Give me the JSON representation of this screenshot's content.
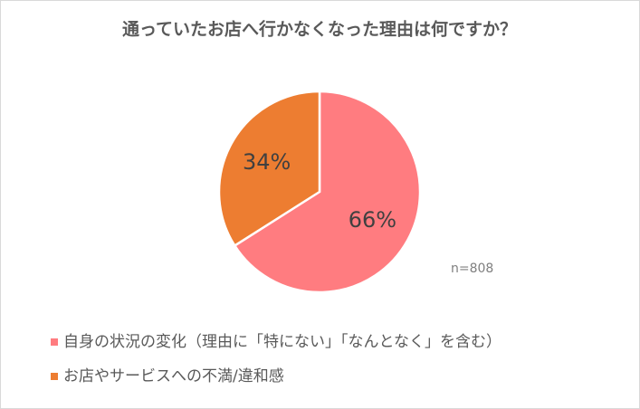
{
  "chart_data": {
    "type": "pie",
    "title": "通っていたお店へ行かなくなった理由は何ですか？",
    "categories": [
      "自身の状況の変化（理由に「特にない」「なんとなく」を含む）",
      "お店やサービスへの不満/違和感"
    ],
    "values": [
      66,
      34
    ],
    "value_labels": [
      "66%",
      "34%"
    ],
    "colors": [
      "#FF7C80",
      "#ED7D31"
    ],
    "annotation": "n=808",
    "legend": "bottom"
  }
}
